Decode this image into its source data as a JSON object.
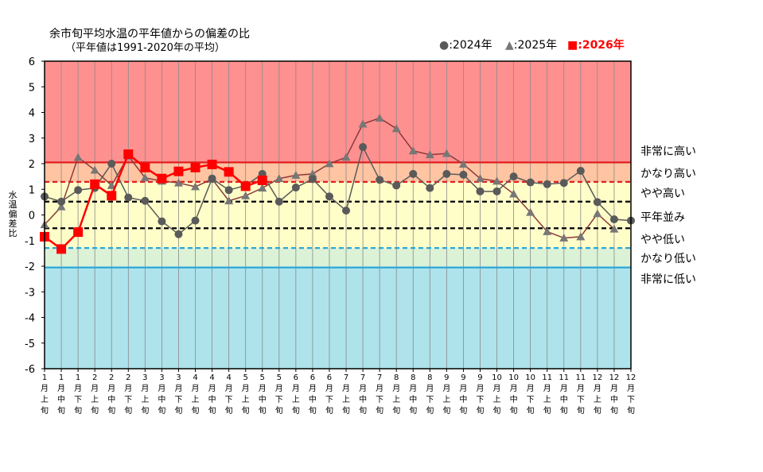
{
  "title": "余市旬平均水温の平年値からの偏差の比",
  "subtitle": "（平年値は1991-2020年の平均）",
  "legend": {
    "s2024": "●:2024年",
    "s2025": "▲:2025年",
    "s2026": "■:2026年"
  },
  "colors": {
    "s2024": "#5a5a5a",
    "s2025": "#8b3a3a",
    "s2025_marker": "#777777",
    "s2026": "#ff0000",
    "zone_very_high": "#ff9090",
    "zone_high": "#ffc4a2",
    "zone_normal": "#fffdc8",
    "zone_low": "#dcf2d7",
    "zone_very_low": "#aee3ec"
  },
  "zone_labels": [
    "非常に高い",
    "かなり高い",
    "やや高い",
    "平年並み",
    "やや低い",
    "かなり低い",
    "非常に低い"
  ],
  "chart_data": {
    "type": "line",
    "ylabel": "水温偏差比",
    "ylim": [
      -6,
      6
    ],
    "yticks": [
      6,
      5,
      4,
      3,
      2,
      1,
      0,
      -1,
      -2,
      -3,
      -4,
      -5,
      -6
    ],
    "thresholds": {
      "very_high": 2.05,
      "high": 1.29,
      "slightly_high": 0.52,
      "slightly_low": -0.52,
      "low": -1.29,
      "very_low": -2.05
    },
    "categories": [
      "1月上旬",
      "1月中旬",
      "1月下旬",
      "2月上旬",
      "2月中旬",
      "2月下旬",
      "3月上旬",
      "3月中旬",
      "3月下旬",
      "4月上旬",
      "4月中旬",
      "4月下旬",
      "5月上旬",
      "5月中旬",
      "5月下旬",
      "6月上旬",
      "6月中旬",
      "6月下旬",
      "7月上旬",
      "7月中旬",
      "7月下旬",
      "8月上旬",
      "8月中旬",
      "8月下旬",
      "9月上旬",
      "9月中旬",
      "9月下旬",
      "10月上旬",
      "10月中旬",
      "10月下旬",
      "11月上旬",
      "11月中旬",
      "11月下旬",
      "12月上旬",
      "12月中旬",
      "12月下旬"
    ],
    "tick_labels": [
      [
        "1",
        "月",
        "上",
        "旬"
      ],
      [
        "1",
        "月",
        "中",
        "旬"
      ],
      [
        "1",
        "月",
        "下",
        "旬"
      ],
      [
        "2",
        "月",
        "上",
        "旬"
      ],
      [
        "2",
        "月",
        "中",
        "旬"
      ],
      [
        "2",
        "月",
        "下",
        "旬"
      ],
      [
        "3",
        "月",
        "上",
        "旬"
      ],
      [
        "3",
        "月",
        "中",
        "旬"
      ],
      [
        "3",
        "月",
        "下",
        "旬"
      ],
      [
        "4",
        "月",
        "上",
        "旬"
      ],
      [
        "4",
        "月",
        "中",
        "旬"
      ],
      [
        "4",
        "月",
        "下",
        "旬"
      ],
      [
        "5",
        "月",
        "上",
        "旬"
      ],
      [
        "5",
        "月",
        "中",
        "旬"
      ],
      [
        "5",
        "月",
        "下",
        "旬"
      ],
      [
        "6",
        "月",
        "上",
        "旬"
      ],
      [
        "6",
        "月",
        "中",
        "旬"
      ],
      [
        "6",
        "月",
        "下",
        "旬"
      ],
      [
        "7",
        "月",
        "上",
        "旬"
      ],
      [
        "7",
        "月",
        "中",
        "旬"
      ],
      [
        "7",
        "月",
        "下",
        "旬"
      ],
      [
        "8",
        "月",
        "上",
        "旬"
      ],
      [
        "8",
        "月",
        "中",
        "旬"
      ],
      [
        "8",
        "月",
        "下",
        "旬"
      ],
      [
        "9",
        "月",
        "上",
        "旬"
      ],
      [
        "9",
        "月",
        "中",
        "旬"
      ],
      [
        "9",
        "月",
        "下",
        "旬"
      ],
      [
        "10",
        "月",
        "上",
        "旬"
      ],
      [
        "10",
        "月",
        "中",
        "旬"
      ],
      [
        "10",
        "月",
        "下",
        "旬"
      ],
      [
        "11",
        "月",
        "上",
        "旬"
      ],
      [
        "11",
        "月",
        "中",
        "旬"
      ],
      [
        "11",
        "月",
        "下",
        "旬"
      ],
      [
        "12",
        "月",
        "上",
        "旬"
      ],
      [
        "12",
        "月",
        "中",
        "旬"
      ],
      [
        "12",
        "月",
        "下",
        "旬"
      ]
    ],
    "series": [
      {
        "name": "2024年",
        "marker": "circle",
        "values": [
          0.72,
          0.52,
          0.97,
          1.05,
          2.0,
          0.68,
          0.55,
          -0.25,
          -0.75,
          -0.22,
          1.42,
          0.97,
          1.15,
          1.6,
          0.52,
          1.07,
          1.4,
          0.72,
          0.17,
          2.65,
          1.37,
          1.15,
          1.6,
          1.05,
          1.6,
          1.57,
          0.92,
          0.92,
          1.5,
          1.27,
          1.2,
          1.25,
          1.72,
          0.5,
          -0.17,
          -0.22
        ]
      },
      {
        "name": "2025年",
        "marker": "triangle",
        "values": [
          -0.38,
          0.32,
          2.25,
          1.75,
          1.15,
          2.3,
          1.45,
          1.32,
          1.25,
          1.1,
          1.4,
          0.55,
          0.75,
          1.05,
          1.42,
          1.55,
          1.6,
          2.0,
          2.25,
          3.55,
          3.78,
          3.37,
          2.5,
          2.35,
          2.4,
          1.98,
          1.42,
          1.32,
          0.82,
          0.1,
          -0.65,
          -0.9,
          -0.85,
          0.05,
          -0.55,
          null
        ]
      },
      {
        "name": "2026年",
        "marker": "square",
        "values": [
          -0.85,
          -1.33,
          -0.67,
          1.2,
          0.75,
          2.37,
          1.85,
          1.42,
          1.7,
          1.85,
          1.97,
          1.68,
          1.12,
          1.35,
          null,
          null,
          null,
          null,
          null,
          null,
          null,
          null,
          null,
          null,
          null,
          null,
          null,
          null,
          null,
          null,
          null,
          null,
          null,
          null,
          null,
          null
        ]
      }
    ]
  }
}
